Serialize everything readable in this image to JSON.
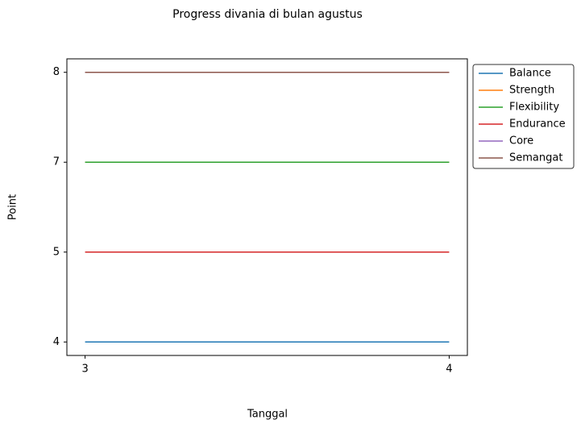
{
  "chart_data": {
    "type": "line",
    "title": "Progress divania di bulan agustus",
    "x_label": "Tanggal",
    "y_label": "Point",
    "x": [
      3,
      4
    ],
    "xlim": [
      2.95,
      4.05
    ],
    "xticks": [
      3,
      4
    ],
    "y_scale": "categorical",
    "yticks": [
      4,
      5,
      7,
      8
    ],
    "legend": "outside-upper-right",
    "series": [
      {
        "name": "Balance",
        "color": "#1f77b4",
        "values": [
          4,
          4
        ]
      },
      {
        "name": "Strength",
        "color": "#ff7f0e",
        "values": [
          7,
          7
        ]
      },
      {
        "name": "Flexibility",
        "color": "#2ca02c",
        "values": [
          7,
          7
        ]
      },
      {
        "name": "Endurance",
        "color": "#d62728",
        "values": [
          5,
          5
        ]
      },
      {
        "name": "Core",
        "color": "#9467bd",
        "values": [
          8,
          8
        ]
      },
      {
        "name": "Semangat",
        "color": "#8c564b",
        "values": [
          8,
          8
        ]
      }
    ]
  }
}
